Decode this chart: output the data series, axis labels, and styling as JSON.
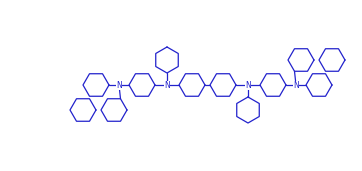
{
  "bg_color": "#ffffff",
  "line_color": "#2222cc",
  "line_width": 0.9,
  "fig_width": 3.62,
  "fig_height": 1.71,
  "dpi": 100,
  "xlim": [
    0,
    362
  ],
  "ylim": [
    0,
    171
  ]
}
